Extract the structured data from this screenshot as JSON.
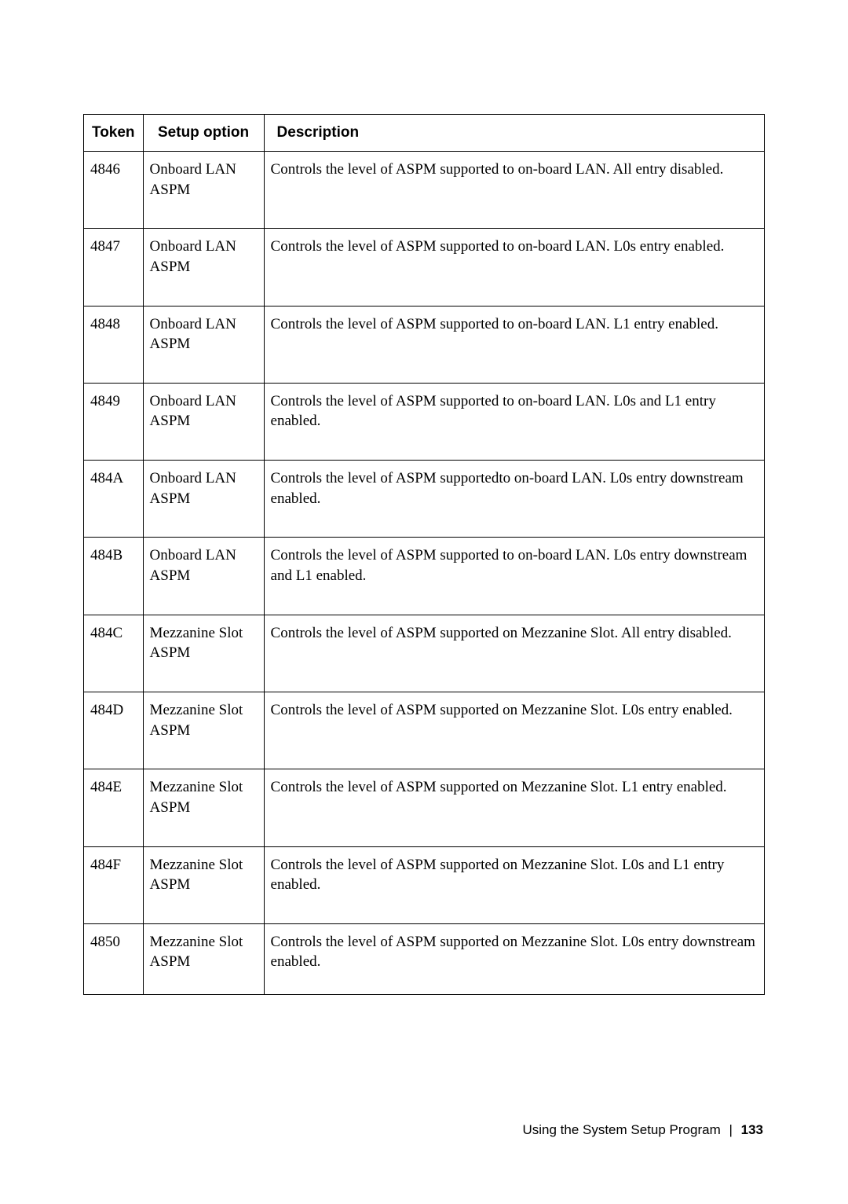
{
  "table": {
    "headers": {
      "token": "Token",
      "setup": "Setup option",
      "description": "Description"
    },
    "rows": [
      {
        "token": "4846",
        "setup": "Onboard LAN ASPM",
        "description": "Controls the level of ASPM supported to on-board LAN. All entry disabled."
      },
      {
        "token": "4847",
        "setup": "Onboard LAN ASPM",
        "description": "Controls the level of ASPM supported to on-board LAN. L0s entry enabled."
      },
      {
        "token": "4848",
        "setup": "Onboard LAN ASPM",
        "description": "Controls the level of ASPM supported to on-board LAN. L1 entry enabled."
      },
      {
        "token": "4849",
        "setup": "Onboard LAN ASPM",
        "description": "Controls the level of ASPM supported to on-board LAN. L0s and L1 entry enabled."
      },
      {
        "token": "484A",
        "setup": "Onboard LAN ASPM",
        "description": "Controls the level of ASPM supportedto on-board LAN. L0s entry downstream enabled."
      },
      {
        "token": "484B",
        "setup": "Onboard LAN ASPM",
        "description": "Controls the level of ASPM supported to on-board LAN. L0s entry downstream and L1 enabled."
      },
      {
        "token": "484C",
        "setup": "Mezzanine Slot ASPM",
        "description": "Controls the level of ASPM supported on Mezzanine Slot. All entry disabled."
      },
      {
        "token": "484D",
        "setup": "Mezzanine Slot ASPM",
        "description": "Controls the level of ASPM supported on Mezzanine Slot. L0s entry enabled."
      },
      {
        "token": "484E",
        "setup": "Mezzanine Slot ASPM",
        "description": "Controls the level of ASPM supported on Mezzanine Slot. L1 entry enabled."
      },
      {
        "token": "484F",
        "setup": "Mezzanine Slot ASPM",
        "description": "Controls the level of ASPM supported on Mezzanine Slot. L0s and L1 entry enabled."
      },
      {
        "token": "4850",
        "setup": "Mezzanine Slot ASPM",
        "description": "Controls the level of ASPM supported on Mezzanine Slot. L0s entry downstream enabled."
      }
    ]
  },
  "footer": {
    "text": "Using the System Setup Program",
    "page": "133"
  }
}
